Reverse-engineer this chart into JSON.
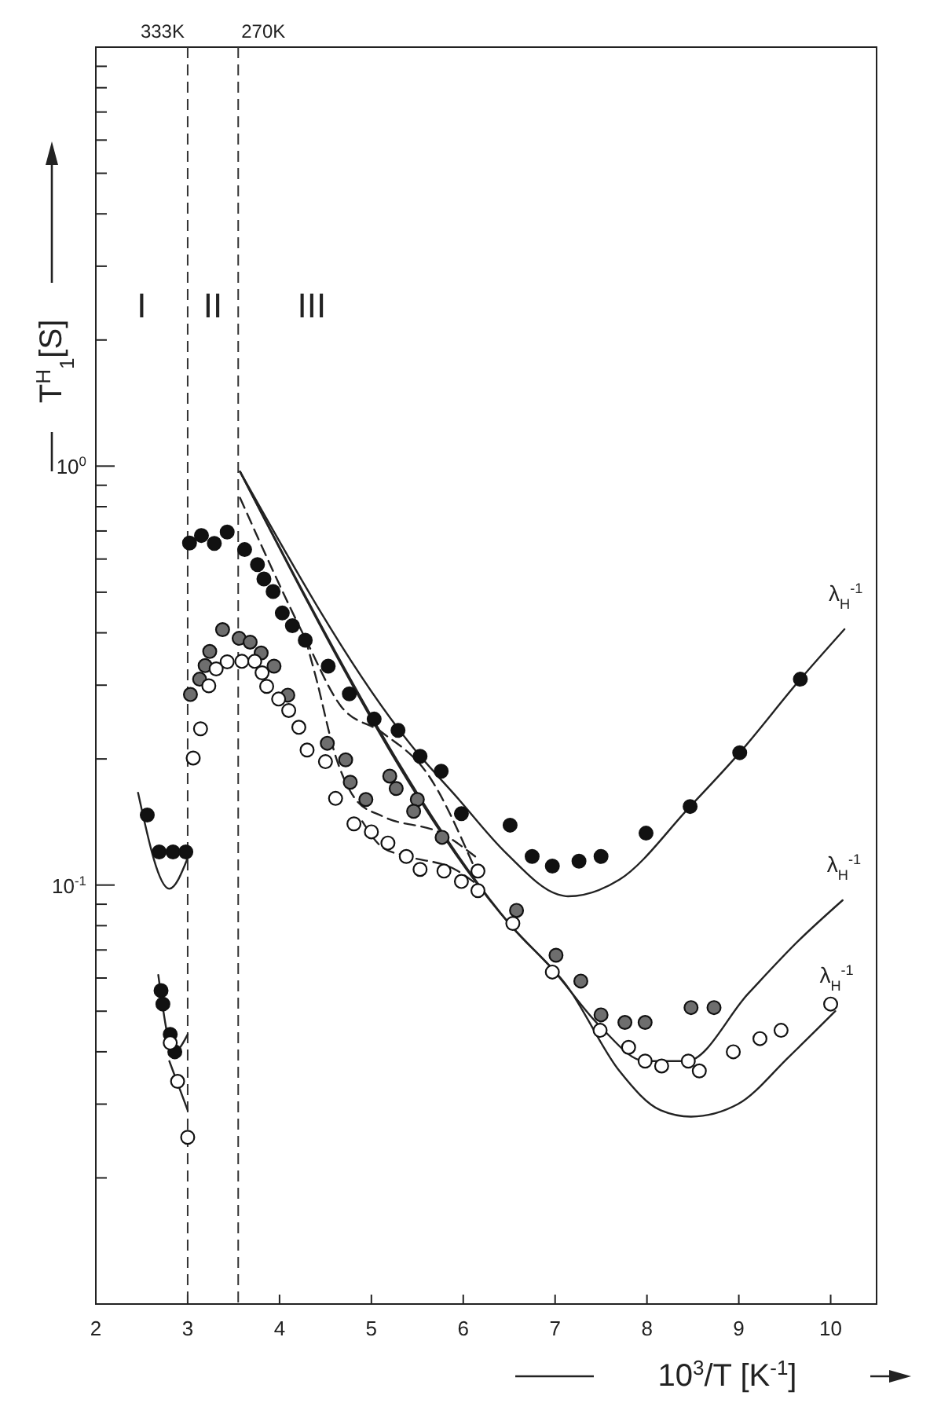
{
  "chart_data": {
    "type": "scatter",
    "xlabel": "10$^{3}$/T [K$^{-1}$]",
    "ylabel": "T$^{H}$$_{1}$[S]",
    "log": "y",
    "grid": false,
    "xlim": [
      2,
      10.5
    ],
    "xticks": [
      2,
      3,
      4,
      5,
      6,
      7,
      8,
      9,
      10
    ],
    "ylim": [
      0.01,
      10
    ],
    "yticks": [
      {
        "value": 0.02,
        "label": null
      },
      {
        "value": 0.03,
        "label": null
      },
      {
        "value": 0.04,
        "label": null
      },
      {
        "value": 0.05,
        "label": null
      },
      {
        "value": 0.06,
        "label": null
      },
      {
        "value": 0.07,
        "label": null
      },
      {
        "value": 0.08,
        "label": null
      },
      {
        "value": 0.09,
        "label": null
      },
      {
        "value": 0.1,
        "label": "10$^{-1}$"
      },
      {
        "value": 0.2,
        "label": null
      },
      {
        "value": 0.3,
        "label": null
      },
      {
        "value": 0.4,
        "label": null
      },
      {
        "value": 0.5,
        "label": null
      },
      {
        "value": 0.6,
        "label": null
      },
      {
        "value": 0.7,
        "label": null
      },
      {
        "value": 0.8,
        "label": null
      },
      {
        "value": 0.9,
        "label": null
      },
      {
        "value": 1,
        "label": "10$^{0}$"
      },
      {
        "value": 2,
        "label": null
      },
      {
        "value": 3,
        "label": null
      },
      {
        "value": 4,
        "label": null
      },
      {
        "value": 5,
        "label": null
      },
      {
        "value": 6,
        "label": null
      },
      {
        "value": 7,
        "label": null
      },
      {
        "value": 8,
        "label": null
      },
      {
        "value": 9,
        "label": null
      }
    ],
    "ref_lines": [
      {
        "axis": "x",
        "value": 3,
        "label": "333K",
        "line_style": "dashed",
        "color": "#333333"
      },
      {
        "axis": "x",
        "value": 3.55,
        "label": "270K",
        "line_style": "dashed",
        "color": "#333333"
      }
    ],
    "annotations": [
      "I",
      "II",
      "III"
    ],
    "series": [
      {
        "color": "#111111",
        "x": [
          2.56,
          2.69,
          2.84,
          2.98,
          3.02,
          3.15,
          3.29,
          3.43,
          3.62,
          3.76,
          3.83,
          3.93,
          4.03,
          4.14,
          4.28,
          4.53,
          4.76,
          5.03,
          5.29,
          5.53,
          5.76,
          5.98,
          6.51,
          6.75,
          6.97,
          7.26,
          7.5,
          7.99,
          8.47,
          9.01,
          9.67,
          2.71,
          2.73,
          2.81,
          2.86
        ],
        "values": [
          0.147,
          0.12,
          0.12,
          0.12,
          0.655,
          0.683,
          0.654,
          0.696,
          0.632,
          0.582,
          0.538,
          0.502,
          0.446,
          0.416,
          0.384,
          0.333,
          0.286,
          0.249,
          0.234,
          0.203,
          0.187,
          0.148,
          0.139,
          0.117,
          0.111,
          0.114,
          0.117,
          0.133,
          0.154,
          0.207,
          0.31,
          0.056,
          0.052,
          0.044,
          0.04
        ]
      },
      {
        "color": "#6e6e6e",
        "x": [
          3.03,
          3.13,
          3.19,
          3.24,
          3.38,
          3.56,
          3.68,
          3.8,
          3.94,
          4.09,
          4.52,
          4.72,
          4.77,
          4.94,
          5.2,
          5.27,
          5.5,
          5.46,
          5.77,
          6.58,
          7.01,
          7.28,
          7.5,
          7.76,
          7.98,
          8.48,
          8.73
        ],
        "values": [
          0.285,
          0.31,
          0.334,
          0.361,
          0.407,
          0.388,
          0.38,
          0.358,
          0.333,
          0.284,
          0.218,
          0.199,
          0.176,
          0.16,
          0.182,
          0.17,
          0.16,
          0.15,
          0.13,
          0.087,
          0.068,
          0.059,
          0.049,
          0.047,
          0.047,
          0.051,
          0.051
        ]
      },
      {
        "color": "#ffffff",
        "x": [
          3.06,
          3.14,
          3.23,
          3.31,
          3.43,
          3.59,
          3.73,
          3.81,
          3.86,
          3.99,
          4.1,
          4.21,
          4.3,
          4.5,
          4.61,
          4.81,
          5,
          5.18,
          5.38,
          5.53,
          5.79,
          5.98,
          6.16,
          6.16,
          6.54,
          6.97,
          7.49,
          7.8,
          7.98,
          8.16,
          8.45,
          8.57,
          8.94,
          9.23,
          9.46,
          10,
          2.81,
          2.89,
          3
        ],
        "values": [
          0.201,
          0.236,
          0.299,
          0.328,
          0.341,
          0.342,
          0.342,
          0.321,
          0.298,
          0.278,
          0.261,
          0.238,
          0.21,
          0.197,
          0.161,
          0.14,
          0.134,
          0.126,
          0.117,
          0.109,
          0.108,
          0.102,
          0.108,
          0.097,
          0.081,
          0.062,
          0.045,
          0.041,
          0.038,
          0.037,
          0.038,
          0.036,
          0.04,
          0.043,
          0.045,
          0.052,
          0.042,
          0.034,
          0.025
        ]
      },
      {
        "type": "line",
        "name": "λ$_{H}$$^{-1}$",
        "color": "#222222",
        "line_style": "solid",
        "x": [
          3.57,
          5.3,
          5.46,
          5.91,
          6.47,
          7.03,
          7.14,
          7.7,
          8.47,
          9.01,
          9.67,
          10.15
        ],
        "values": [
          0.97,
          0.235,
          0.212,
          0.164,
          0.119,
          0.095,
          0.094,
          0.103,
          0.154,
          0.207,
          0.31,
          0.408
        ]
      },
      {
        "type": "line",
        "name": "λ$_{H}$$^{-1}$",
        "color": "#222222",
        "line_style": "solid",
        "x": [
          3.57,
          6.52,
          6.97,
          7.49,
          7.98,
          8.43,
          9.1,
          9.66,
          10.13
        ],
        "values": [
          0.97,
          0.08,
          0.063,
          0.046,
          0.038,
          0.038,
          0.055,
          0.074,
          0.092
        ]
      },
      {
        "type": "line",
        "name": "λ$_{H}$$^{-1}$",
        "color": "#222222",
        "line_style": "solid",
        "x": [
          3.57,
          6.52,
          7.14,
          7.7,
          8.15,
          8.48,
          8.99,
          9.55,
          10.05
        ],
        "values": [
          0.97,
          0.08,
          0.057,
          0.036,
          0.029,
          0.028,
          0.03,
          0.039,
          0.05
        ]
      },
      {
        "type": "line",
        "color": "#222222",
        "line_style": "solid",
        "x": [
          2.46,
          2.8,
          3
        ],
        "values": [
          0.166,
          0.098,
          0.116
        ]
      },
      {
        "type": "line",
        "color": "#222222",
        "line_style": "solid",
        "x": [
          2.68,
          2.85,
          3
        ],
        "values": [
          0.061,
          0.04,
          0.044
        ]
      },
      {
        "type": "line",
        "color": "#222222",
        "line_style": "solid",
        "x": [
          2.8,
          3
        ],
        "values": [
          0.038,
          0.029
        ]
      },
      {
        "type": "line",
        "color": "#222222",
        "line_style": "dashed",
        "x": [
          3.57,
          4.28,
          4.67,
          5.12,
          5.62,
          6.13
        ],
        "values": [
          0.84,
          0.388,
          0.267,
          0.231,
          0.183,
          0.109
        ]
      },
      {
        "type": "line",
        "color": "#222222",
        "line_style": "dashed",
        "x": [
          4.28,
          4.39,
          4.62,
          4.84,
          5.12,
          5.79,
          6.13
        ],
        "values": [
          0.388,
          0.317,
          0.2,
          0.159,
          0.146,
          0.132,
          0.117
        ]
      },
      {
        "type": "line",
        "color": "#222222",
        "line_style": "dashed",
        "x": [
          4.9,
          5.12,
          5.4,
          5.91,
          6.16
        ],
        "values": [
          0.142,
          0.123,
          0.117,
          0.109,
          0.1
        ]
      }
    ]
  }
}
